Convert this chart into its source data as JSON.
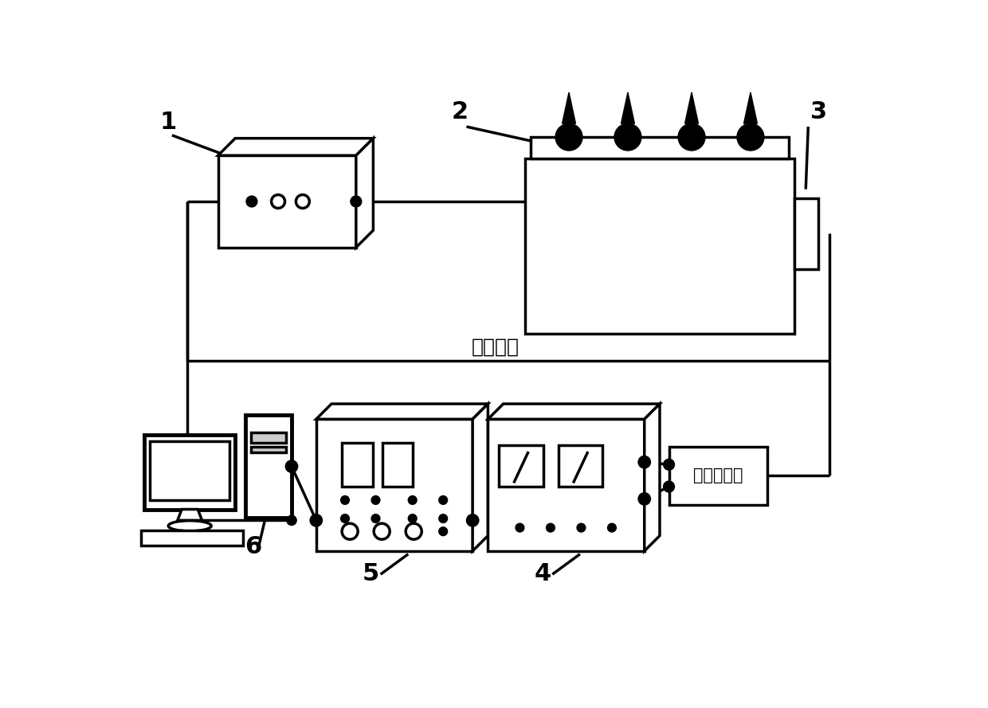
{
  "bg_color": "#ffffff",
  "lc": "#000000",
  "lw": 2.5,
  "labels": [
    "1",
    "2",
    "3",
    "4",
    "5",
    "6"
  ],
  "ref_signal": "参考信号",
  "detector_label": "光电探测器"
}
